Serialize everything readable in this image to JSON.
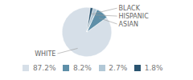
{
  "chart_data": {
    "type": "pie",
    "categories": [
      "WHITE",
      "ASIAN",
      "HISPANIC",
      "BLACK"
    ],
    "values": [
      87.2,
      8.2,
      2.7,
      1.8
    ],
    "value_labels": [
      "87.2%",
      "8.2%",
      "2.7%",
      "1.8%"
    ],
    "colors": [
      "#d6dfe8",
      "#5e8fa8",
      "#b2c8d6",
      "#2a5470"
    ],
    "legend": "bottom"
  }
}
